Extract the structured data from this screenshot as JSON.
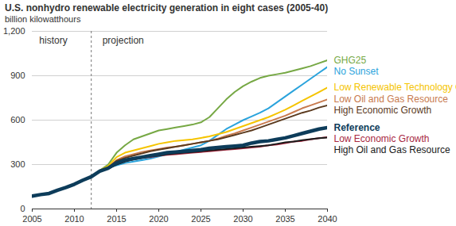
{
  "chart_data": {
    "type": "line",
    "title": "U.S. nonhydro renewable electricity generation in eight cases (2005-40)",
    "subtitle": "billion kilowatthours",
    "annotations": [
      "history",
      "projection"
    ],
    "divider": 2012,
    "x": [
      2005,
      2006,
      2007,
      2008,
      2009,
      2010,
      2011,
      2012,
      2013,
      2014,
      2015,
      2016,
      2017,
      2018,
      2019,
      2020,
      2021,
      2022,
      2023,
      2024,
      2025,
      2026,
      2027,
      2028,
      2029,
      2030,
      2031,
      2032,
      2033,
      2034,
      2035,
      2036,
      2037,
      2038,
      2039,
      2040
    ],
    "xlim": [
      2005,
      2040
    ],
    "xticks": [
      2005,
      2010,
      2015,
      2020,
      2025,
      2030,
      2035,
      2040
    ],
    "ylim": [
      0,
      1200
    ],
    "yticks": [
      0,
      300,
      600,
      900,
      {
        "value": 1200,
        "label": "1,200"
      }
    ],
    "grid": true,
    "series": [
      {
        "name": "GHG25",
        "color": "#76a844",
        "values": [
          87,
          97,
          105,
          126,
          145,
          167,
          194,
          218,
          260,
          300,
          380,
          430,
          470,
          490,
          510,
          530,
          540,
          550,
          560,
          570,
          585,
          620,
          680,
          740,
          790,
          830,
          860,
          885,
          900,
          910,
          920,
          935,
          950,
          965,
          985,
          1005
        ]
      },
      {
        "name": "No Sunset",
        "color": "#2aa3dc",
        "values": [
          87,
          97,
          105,
          126,
          145,
          167,
          194,
          218,
          260,
          280,
          295,
          310,
          320,
          330,
          340,
          355,
          370,
          385,
          400,
          415,
          430,
          460,
          500,
          540,
          570,
          600,
          625,
          650,
          680,
          720,
          760,
          800,
          840,
          880,
          920,
          960
        ]
      },
      {
        "name": "Low Renewable Technology Cost",
        "color": "#f5c400",
        "values": [
          87,
          97,
          105,
          126,
          145,
          167,
          194,
          218,
          260,
          290,
          350,
          380,
          395,
          410,
          425,
          440,
          450,
          460,
          465,
          470,
          480,
          490,
          505,
          520,
          540,
          560,
          580,
          600,
          620,
          645,
          670,
          700,
          730,
          760,
          790,
          820
        ]
      },
      {
        "name": "Low Oil and Gas Resource",
        "color": "#c87a4e",
        "values": [
          87,
          97,
          105,
          126,
          145,
          167,
          194,
          218,
          258,
          280,
          330,
          355,
          370,
          385,
          395,
          405,
          415,
          420,
          430,
          440,
          450,
          460,
          475,
          495,
          510,
          530,
          550,
          570,
          590,
          610,
          630,
          655,
          680,
          700,
          720,
          740
        ]
      },
      {
        "name": "High Economic Growth",
        "color": "#5b3a1e",
        "values": [
          87,
          97,
          105,
          126,
          145,
          167,
          194,
          218,
          258,
          280,
          325,
          345,
          360,
          375,
          390,
          400,
          410,
          420,
          430,
          440,
          450,
          460,
          470,
          485,
          500,
          515,
          530,
          550,
          570,
          590,
          610,
          630,
          650,
          665,
          685,
          700
        ]
      },
      {
        "name": "Reference",
        "color": "#0d3c5a",
        "line_style": "thick",
        "values": [
          87,
          97,
          105,
          126,
          145,
          167,
          194,
          218,
          255,
          275,
          310,
          330,
          340,
          350,
          360,
          370,
          380,
          385,
          390,
          395,
          400,
          410,
          415,
          420,
          425,
          430,
          445,
          455,
          460,
          470,
          480,
          495,
          510,
          525,
          540,
          550
        ]
      },
      {
        "name": "Low Economic Growth",
        "color": "#a8283f",
        "values": [
          87,
          97,
          105,
          126,
          145,
          167,
          194,
          218,
          255,
          272,
          305,
          325,
          335,
          345,
          350,
          360,
          365,
          370,
          375,
          380,
          385,
          390,
          395,
          400,
          405,
          410,
          415,
          420,
          430,
          435,
          445,
          455,
          460,
          470,
          478,
          485
        ]
      },
      {
        "name": "High Oil and Gas Resource",
        "color": "#1a1a1a",
        "values": [
          87,
          97,
          105,
          126,
          145,
          167,
          194,
          218,
          255,
          272,
          300,
          320,
          335,
          345,
          355,
          360,
          370,
          375,
          380,
          385,
          390,
          395,
          400,
          405,
          410,
          415,
          420,
          425,
          430,
          440,
          450,
          455,
          465,
          472,
          478,
          482
        ]
      }
    ]
  }
}
